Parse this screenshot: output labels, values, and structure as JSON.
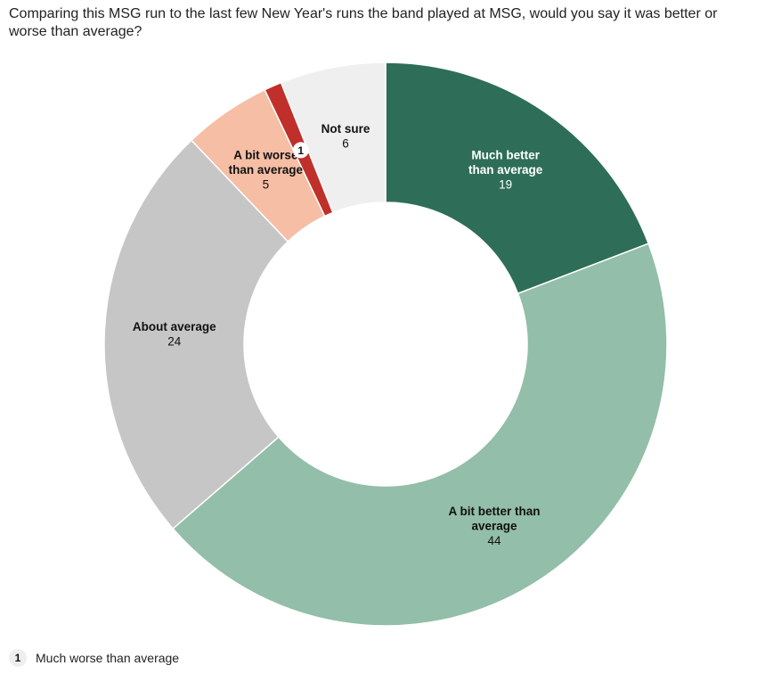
{
  "chart_data": {
    "type": "pie",
    "donut": true,
    "title": "Comparing this MSG run to the last few New Year's runs the band played at MSG, would you say it was better or worse than average?",
    "slices": [
      {
        "label": "Much better than average",
        "display_lines": [
          "Much better",
          "than average"
        ],
        "value": 19,
        "color": "#2e6e58",
        "text_color": "light"
      },
      {
        "label": "A bit better than average",
        "display_lines": [
          "A bit better than",
          "average"
        ],
        "value": 44,
        "color": "#93bea9",
        "text_color": "dark"
      },
      {
        "label": "About average",
        "display_lines": [
          "About average"
        ],
        "value": 24,
        "color": "#c6c6c6",
        "text_color": "dark"
      },
      {
        "label": "A bit worse than average",
        "display_lines": [
          "A bit worse",
          "than average"
        ],
        "value": 5,
        "color": "#f5bea5",
        "text_color": "dark"
      },
      {
        "label": "Much worse than average",
        "display_lines": [],
        "value": 1,
        "color": "#c0302a",
        "footnote_marker": "1"
      },
      {
        "label": "Not sure",
        "display_lines": [
          "Not sure"
        ],
        "value": 6,
        "color": "#efefef",
        "text_color": "dark"
      }
    ],
    "footnote": {
      "marker": "1",
      "text": "Much worse than average"
    }
  }
}
